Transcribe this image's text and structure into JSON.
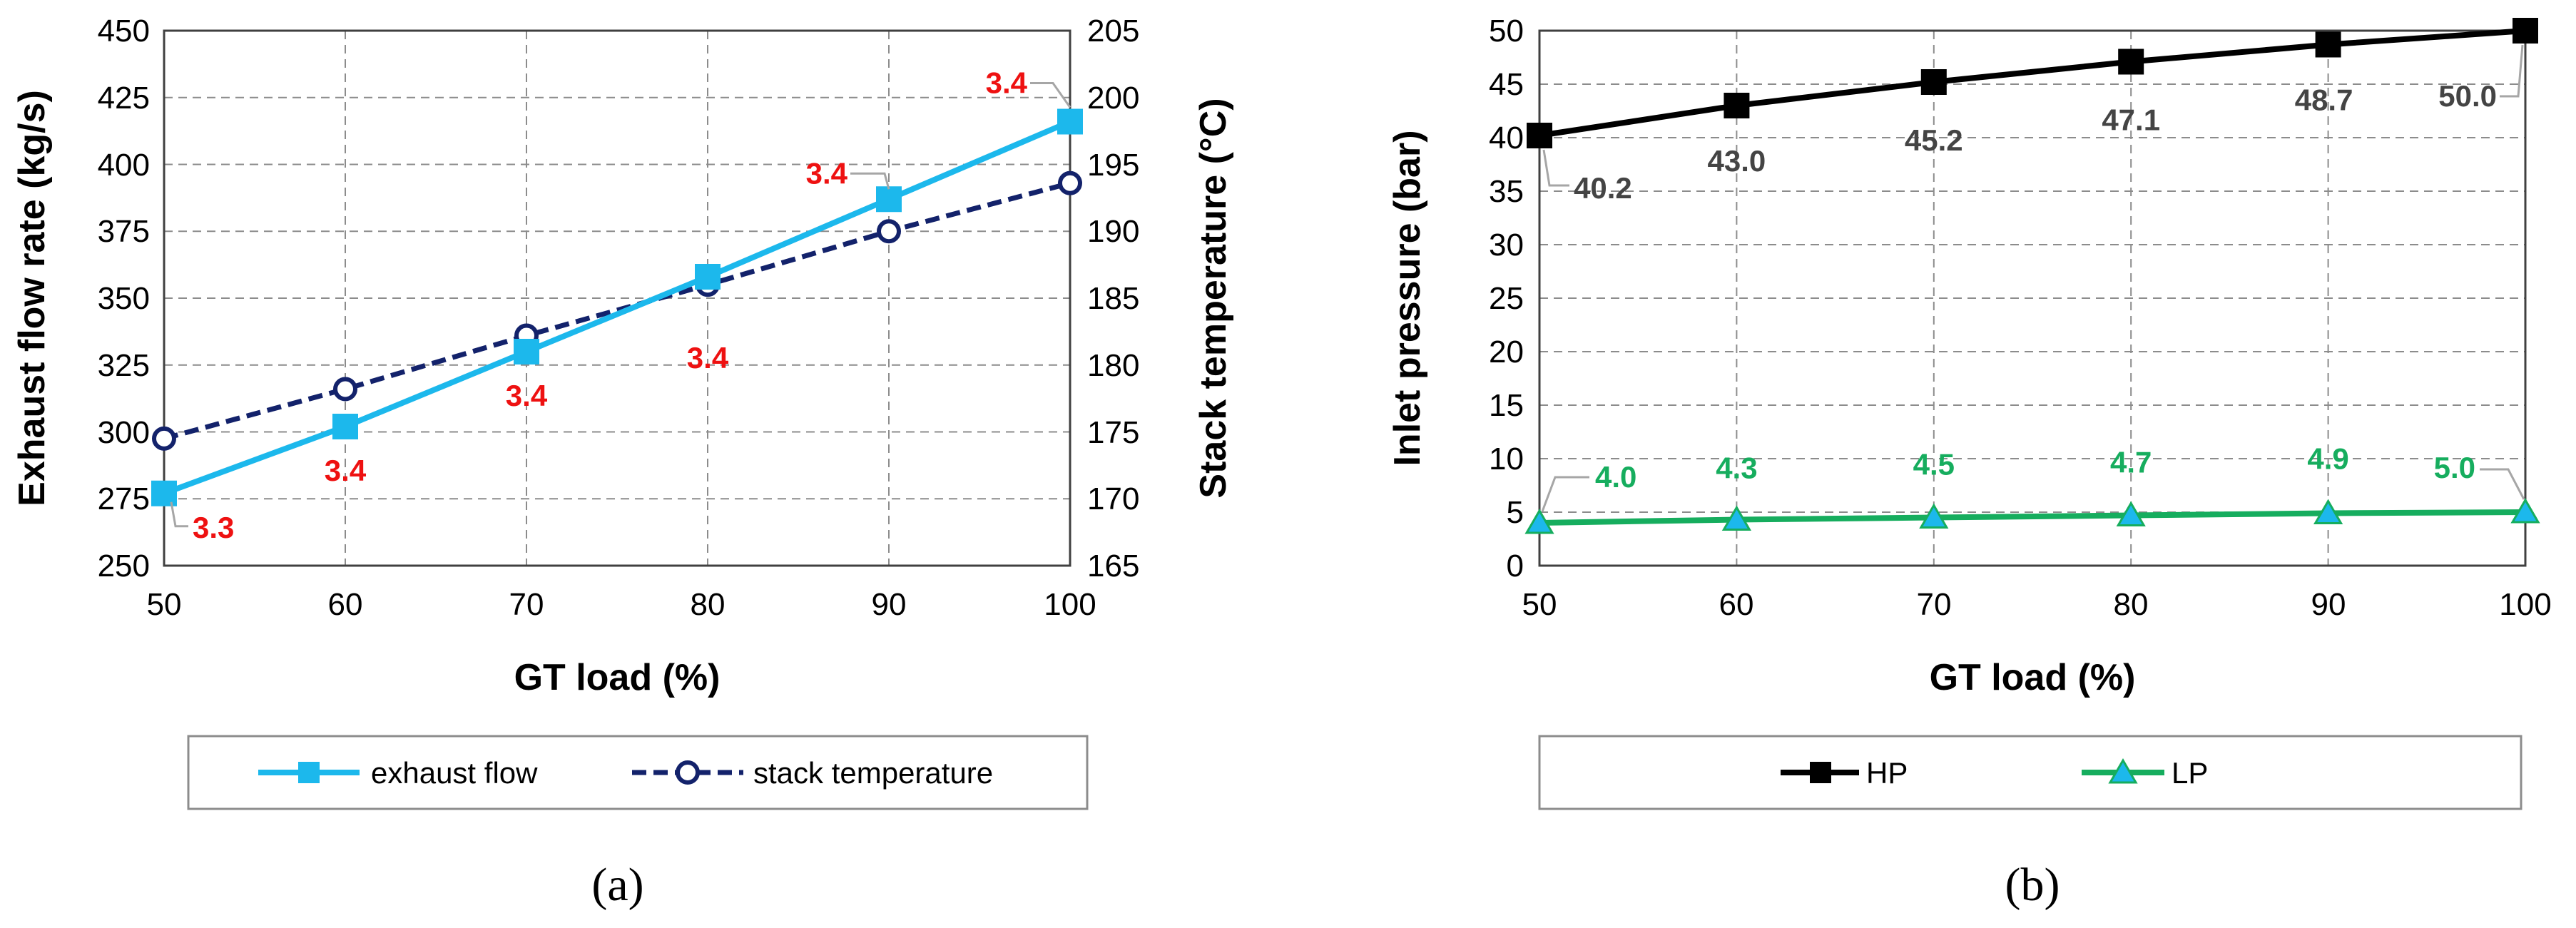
{
  "colors": {
    "exhaust": "#1cb8ec",
    "stack": "#13226b",
    "hp": "#000000",
    "lp": "#16ad5e",
    "red_label": "#ee1111",
    "hp_label": "#444444",
    "grid": "#8c8c8c",
    "leader": "#a6a6a6"
  },
  "chart_data": [
    {
      "type": "line",
      "panel_label": "(a)",
      "title": "",
      "xlabel": "GT load (%)",
      "ylabel": "Exhaust flow rate (kg/s)",
      "y2label": "Stack temperature (°C)",
      "x": [
        50,
        60,
        70,
        80,
        90,
        100
      ],
      "xlim": [
        50,
        100
      ],
      "ylim": [
        250,
        450
      ],
      "y2lim": [
        165,
        205
      ],
      "x_ticks": [
        "50",
        "60",
        "70",
        "80",
        "90",
        "100"
      ],
      "y_ticks": [
        "250",
        "275",
        "300",
        "325",
        "350",
        "375",
        "400",
        "425",
        "450"
      ],
      "y2_ticks": [
        "165",
        "170",
        "175",
        "180",
        "185",
        "190",
        "195",
        "200",
        "205"
      ],
      "grid": true,
      "legend_position": "bottom",
      "series": [
        {
          "name": "exhaust flow",
          "axis": "left",
          "marker": "square",
          "values": [
            277,
            302,
            330,
            358,
            387,
            416
          ],
          "labels": [
            "3.3",
            "3.4",
            "3.4",
            "3.4",
            "3.4",
            "3.4"
          ]
        },
        {
          "name": "stack temperature",
          "axis": "right",
          "marker": "circle",
          "dashed": true,
          "values": [
            174.5,
            178.2,
            182.2,
            186.0,
            190.0,
            193.6
          ]
        }
      ]
    },
    {
      "type": "line",
      "panel_label": "(b)",
      "title": "",
      "xlabel": "GT load (%)",
      "ylabel": "Inlet pressure (bar)",
      "x": [
        50,
        60,
        70,
        80,
        90,
        100
      ],
      "xlim": [
        50,
        100
      ],
      "ylim": [
        0,
        50
      ],
      "x_ticks": [
        "50",
        "60",
        "70",
        "80",
        "90",
        "100"
      ],
      "y_ticks": [
        "0",
        "5",
        "10",
        "15",
        "20",
        "25",
        "30",
        "35",
        "40",
        "45",
        "50"
      ],
      "grid": true,
      "legend_position": "bottom",
      "series": [
        {
          "name": "HP",
          "marker": "square",
          "values": [
            40.2,
            43.0,
            45.2,
            47.1,
            48.7,
            50.0
          ],
          "labels": [
            "40.2",
            "43.0",
            "45.2",
            "47.1",
            "48.7",
            "50.0"
          ]
        },
        {
          "name": "LP",
          "marker": "triangle",
          "values": [
            4.0,
            4.3,
            4.5,
            4.7,
            4.9,
            5.0
          ],
          "labels": [
            "4.0",
            "4.3",
            "4.5",
            "4.7",
            "4.9",
            "5.0"
          ]
        }
      ]
    }
  ]
}
